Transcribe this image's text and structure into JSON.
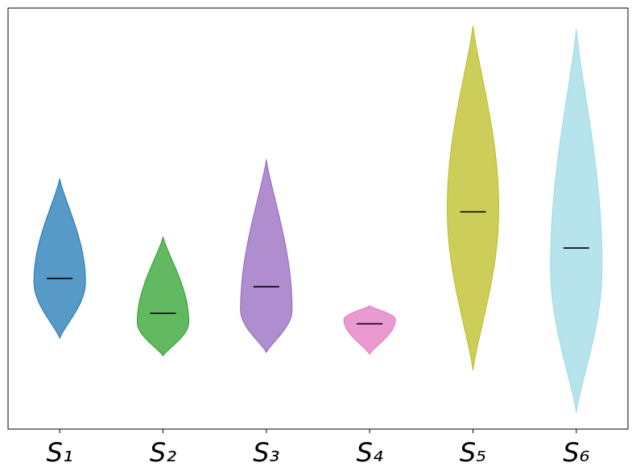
{
  "chart_data": {
    "type": "violin",
    "ylim": [
      0,
      100
    ],
    "series": [
      {
        "name": "S₁",
        "color": "#1f77b4",
        "min": 21.6,
        "max": 59.5,
        "median": 35.8,
        "peak": 35.0
      },
      {
        "name": "S₂",
        "color": "#2ca02c",
        "min": 17.4,
        "max": 45.7,
        "median": 27.5,
        "peak": 25.4
      },
      {
        "name": "S₃",
        "color": "#9467bd",
        "min": 18.2,
        "max": 64.1,
        "median": 33.8,
        "peak": 28.3
      },
      {
        "name": "S₄",
        "color": "#e377c2",
        "min": 17.8,
        "max": 29.3,
        "median": 25.0,
        "peak": 26.0
      },
      {
        "name": "S₅",
        "color": "#bcbd22",
        "min": 14.0,
        "max": 95.8,
        "median": 51.6,
        "peak": 52.4
      },
      {
        "name": "S₆",
        "color": "#9edae5",
        "min": 4.0,
        "max": 95.0,
        "median": 43.0,
        "peak": 38.6
      }
    ]
  }
}
